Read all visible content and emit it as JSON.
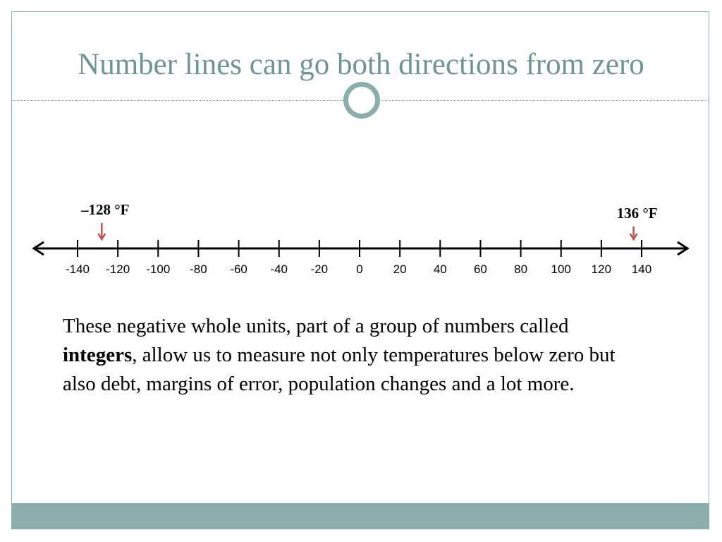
{
  "slide": {
    "title": "Number lines can go both directions from zero",
    "paragraph": {
      "before": "These negative whole units, part of a group of numbers called ",
      "bold": "integers",
      "after": ",  allow us to measure not only temperatures below zero but also debt, margins of error, population changes and a lot more."
    }
  },
  "chart_data": {
    "type": "number-line",
    "ticks": [
      -140,
      -120,
      -100,
      -80,
      -60,
      -40,
      -20,
      0,
      20,
      40,
      60,
      80,
      100,
      120,
      140
    ],
    "tick_labels": [
      "-140",
      "-120",
      "-100",
      "-80",
      "-60",
      "-40",
      "-20",
      "0",
      "20",
      "40",
      "60",
      "80",
      "100",
      "120",
      "140"
    ],
    "markers": [
      {
        "value": -128,
        "label": "–128 °F",
        "color": "#c0504d"
      },
      {
        "value": 136,
        "label": "136 °F",
        "color": "#c0504d"
      }
    ]
  },
  "colors": {
    "accent": "#8aaeae",
    "title": "#6f9498",
    "marker": "#c0504d"
  }
}
